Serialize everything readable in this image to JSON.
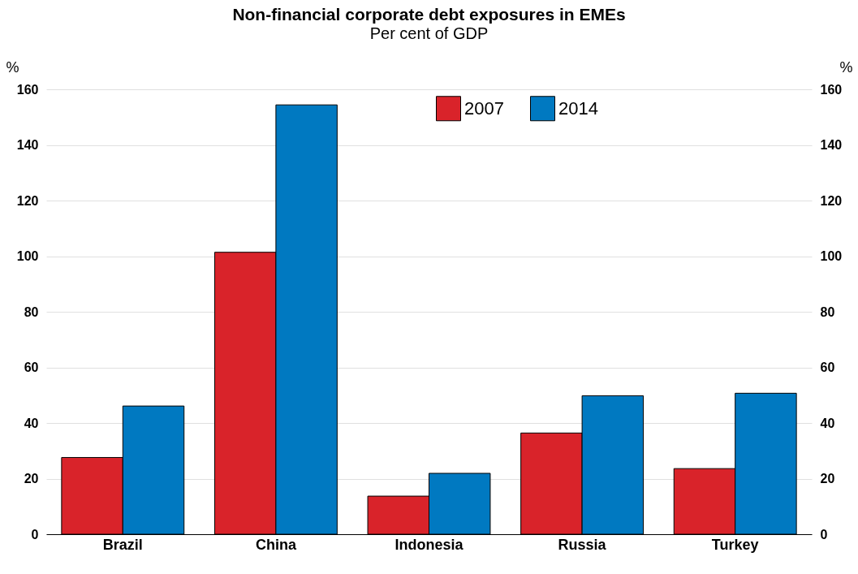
{
  "chart_data": {
    "type": "bar",
    "title": "Non-financial corporate debt exposures in EMEs",
    "subtitle": "Per cent of GDP",
    "ylabel": "%",
    "y2label": "%",
    "categories": [
      "Brazil",
      "China",
      "Indonesia",
      "Russia",
      "Turkey"
    ],
    "series": [
      {
        "name": "2007",
        "color": "#d9232a",
        "values": [
          27.6,
          101.4,
          13.7,
          36.4,
          23.6
        ]
      },
      {
        "name": "2014",
        "color": "#0079c1",
        "values": [
          46.1,
          154.4,
          21.9,
          49.8,
          50.7
        ]
      }
    ],
    "ylim": [
      0,
      160
    ],
    "yticks": [
      0,
      20,
      40,
      60,
      80,
      100,
      120,
      140,
      160
    ],
    "y2lim": [
      0,
      160
    ],
    "y2ticks": [
      0,
      20,
      40,
      60,
      80,
      100,
      120,
      140,
      160
    ],
    "grid": "y",
    "legend": "top"
  }
}
